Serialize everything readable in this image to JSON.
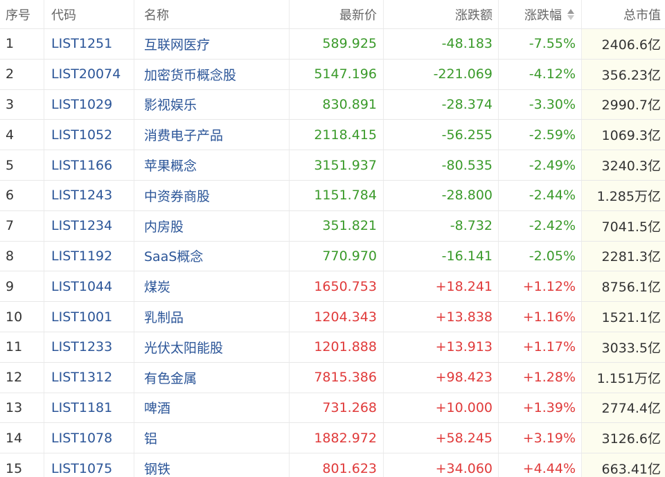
{
  "headers": {
    "idx": "序号",
    "code": "代码",
    "name": "名称",
    "price": "最新价",
    "change": "涨跌额",
    "pct": "涨跌幅",
    "cap": "总市值"
  },
  "colors": {
    "up": "#e03a3a",
    "down": "#3a9a2a",
    "link": "#2b5598"
  },
  "rows": [
    {
      "idx": "1",
      "code": "LIST1251",
      "name": "互联网医疗",
      "price": "589.925",
      "change": "-48.183",
      "pct": "-7.55%",
      "cap": "2406.6亿",
      "dir": "down"
    },
    {
      "idx": "2",
      "code": "LIST20074",
      "name": "加密货币概念股",
      "price": "5147.196",
      "change": "-221.069",
      "pct": "-4.12%",
      "cap": "356.23亿",
      "dir": "down"
    },
    {
      "idx": "3",
      "code": "LIST1029",
      "name": "影视娱乐",
      "price": "830.891",
      "change": "-28.374",
      "pct": "-3.30%",
      "cap": "2990.7亿",
      "dir": "down"
    },
    {
      "idx": "4",
      "code": "LIST1052",
      "name": "消费电子产品",
      "price": "2118.415",
      "change": "-56.255",
      "pct": "-2.59%",
      "cap": "1069.3亿",
      "dir": "down"
    },
    {
      "idx": "5",
      "code": "LIST1166",
      "name": "苹果概念",
      "price": "3151.937",
      "change": "-80.535",
      "pct": "-2.49%",
      "cap": "3240.3亿",
      "dir": "down"
    },
    {
      "idx": "6",
      "code": "LIST1243",
      "name": "中资券商股",
      "price": "1151.784",
      "change": "-28.800",
      "pct": "-2.44%",
      "cap": "1.285万亿",
      "dir": "down"
    },
    {
      "idx": "7",
      "code": "LIST1234",
      "name": "内房股",
      "price": "351.821",
      "change": "-8.732",
      "pct": "-2.42%",
      "cap": "7041.5亿",
      "dir": "down"
    },
    {
      "idx": "8",
      "code": "LIST1192",
      "name": "SaaS概念",
      "price": "770.970",
      "change": "-16.141",
      "pct": "-2.05%",
      "cap": "2281.3亿",
      "dir": "down"
    },
    {
      "idx": "9",
      "code": "LIST1044",
      "name": "煤炭",
      "price": "1650.753",
      "change": "+18.241",
      "pct": "+1.12%",
      "cap": "8756.1亿",
      "dir": "up"
    },
    {
      "idx": "10",
      "code": "LIST1001",
      "name": "乳制品",
      "price": "1204.343",
      "change": "+13.838",
      "pct": "+1.16%",
      "cap": "1521.1亿",
      "dir": "up"
    },
    {
      "idx": "11",
      "code": "LIST1233",
      "name": "光伏太阳能股",
      "price": "1201.888",
      "change": "+13.913",
      "pct": "+1.17%",
      "cap": "3033.5亿",
      "dir": "up"
    },
    {
      "idx": "12",
      "code": "LIST1312",
      "name": "有色金属",
      "price": "7815.386",
      "change": "+98.423",
      "pct": "+1.28%",
      "cap": "1.151万亿",
      "dir": "up"
    },
    {
      "idx": "13",
      "code": "LIST1181",
      "name": "啤酒",
      "price": "731.268",
      "change": "+10.000",
      "pct": "+1.39%",
      "cap": "2774.4亿",
      "dir": "up"
    },
    {
      "idx": "14",
      "code": "LIST1078",
      "name": "铝",
      "price": "1882.972",
      "change": "+58.245",
      "pct": "+3.19%",
      "cap": "3126.6亿",
      "dir": "up"
    },
    {
      "idx": "15",
      "code": "LIST1075",
      "name": "钢铁",
      "price": "801.623",
      "change": "+34.060",
      "pct": "+4.44%",
      "cap": "663.41亿",
      "dir": "up"
    }
  ]
}
